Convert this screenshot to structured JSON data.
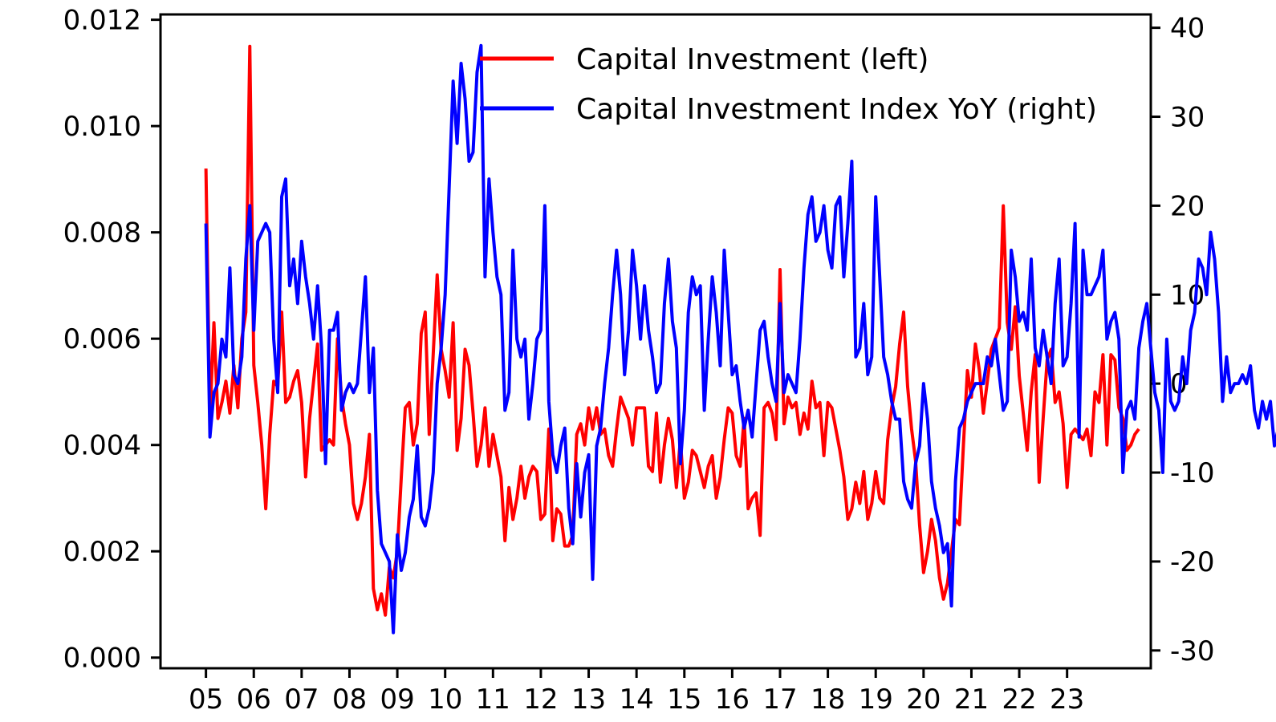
{
  "chart_data": {
    "type": "line",
    "legend_position": "top-center",
    "grid": false,
    "x_tick_labels": [
      "05",
      "06",
      "07",
      "08",
      "09",
      "10",
      "11",
      "12",
      "13",
      "14",
      "15",
      "16",
      "17",
      "18",
      "19",
      "20",
      "21",
      "22",
      "23"
    ],
    "x_tick_years": [
      2005,
      2006,
      2007,
      2008,
      2009,
      2010,
      2011,
      2012,
      2013,
      2014,
      2015,
      2016,
      2017,
      2018,
      2019,
      2020,
      2021,
      2022,
      2023
    ],
    "xlim": [
      2004.05,
      2024.75
    ],
    "left_axis": {
      "ylim": [
        -0.0002,
        0.0121
      ],
      "ticks": [
        0.0,
        0.002,
        0.004,
        0.006,
        0.008,
        0.01,
        0.012
      ],
      "tick_labels": [
        "0.000",
        "0.002",
        "0.004",
        "0.006",
        "0.008",
        "0.010",
        "0.012"
      ]
    },
    "right_axis": {
      "ylim": [
        -32,
        41.5
      ],
      "ticks": [
        -30,
        -20,
        -10,
        0,
        10,
        20,
        30,
        40
      ],
      "tick_labels": [
        "-30",
        "-20",
        "-10",
        "0",
        "10",
        "20",
        "30",
        "40"
      ]
    },
    "series": [
      {
        "name": "Capital Investment (left)",
        "axis": "left",
        "color": "#ff0000",
        "start": 2005.0,
        "step": 0.0833333,
        "values": [
          0.0092,
          0.0045,
          0.0063,
          0.0045,
          0.0048,
          0.0052,
          0.0046,
          0.0055,
          0.0047,
          0.006,
          0.0065,
          0.0115,
          0.0055,
          0.0048,
          0.004,
          0.0028,
          0.0042,
          0.0052,
          0.0051,
          0.0065,
          0.0048,
          0.0049,
          0.0052,
          0.0054,
          0.0048,
          0.0034,
          0.0045,
          0.0052,
          0.0059,
          0.0039,
          0.004,
          0.0041,
          0.004,
          0.006,
          0.0049,
          0.0044,
          0.004,
          0.0029,
          0.0026,
          0.0029,
          0.0034,
          0.0042,
          0.0013,
          0.0009,
          0.0012,
          0.0008,
          0.0017,
          0.0015,
          0.002,
          0.0034,
          0.0047,
          0.0048,
          0.004,
          0.0044,
          0.0061,
          0.0065,
          0.0042,
          0.0057,
          0.0072,
          0.0058,
          0.0054,
          0.0049,
          0.0063,
          0.0039,
          0.0045,
          0.0058,
          0.0055,
          0.0046,
          0.0036,
          0.004,
          0.0047,
          0.0036,
          0.0042,
          0.0038,
          0.0034,
          0.0022,
          0.0032,
          0.0026,
          0.003,
          0.0036,
          0.003,
          0.0034,
          0.0036,
          0.0035,
          0.0026,
          0.0027,
          0.0043,
          0.0022,
          0.0028,
          0.0027,
          0.0021,
          0.0021,
          0.0023,
          0.0042,
          0.0044,
          0.004,
          0.0047,
          0.0043,
          0.0047,
          0.0042,
          0.0043,
          0.0038,
          0.0036,
          0.0043,
          0.0049,
          0.0047,
          0.0045,
          0.004,
          0.0047,
          0.0047,
          0.0047,
          0.0036,
          0.0035,
          0.0046,
          0.0033,
          0.004,
          0.0045,
          0.0041,
          0.0032,
          0.0041,
          0.003,
          0.0033,
          0.0039,
          0.0038,
          0.0035,
          0.0032,
          0.0036,
          0.0038,
          0.003,
          0.0034,
          0.0041,
          0.0047,
          0.0046,
          0.0038,
          0.0036,
          0.0045,
          0.0028,
          0.003,
          0.0031,
          0.0023,
          0.0047,
          0.0048,
          0.0046,
          0.0041,
          0.0073,
          0.0044,
          0.0049,
          0.0047,
          0.0048,
          0.0042,
          0.0046,
          0.0043,
          0.0052,
          0.0047,
          0.0048,
          0.0038,
          0.0048,
          0.0047,
          0.0043,
          0.0039,
          0.0034,
          0.0026,
          0.0028,
          0.0033,
          0.0029,
          0.0035,
          0.0026,
          0.0029,
          0.0035,
          0.003,
          0.0029,
          0.0041,
          0.0047,
          0.0051,
          0.0059,
          0.0065,
          0.0051,
          0.0043,
          0.0037,
          0.0025,
          0.0016,
          0.002,
          0.0026,
          0.0022,
          0.0015,
          0.0011,
          0.0014,
          0.002,
          0.0026,
          0.0025,
          0.004,
          0.0054,
          0.0049,
          0.0059,
          0.0054,
          0.0046,
          0.0052,
          0.0058,
          0.006,
          0.0062,
          0.0085,
          0.0063,
          0.0058,
          0.0066,
          0.0053,
          0.0046,
          0.0039,
          0.005,
          0.0057,
          0.0033,
          0.0045,
          0.0056,
          0.0058,
          0.0048,
          0.005,
          0.0044,
          0.0032,
          0.0042,
          0.0043,
          0.0042,
          0.0041,
          0.0043,
          0.0038,
          0.005,
          0.0048,
          0.0057,
          0.004,
          0.0057,
          0.0056,
          0.0047,
          0.0045,
          0.0039,
          0.004,
          0.0042,
          0.0043
        ]
      },
      {
        "name": "Capital Investment Index YoY (right)",
        "axis": "right",
        "color": "#0000ff",
        "start": 2005.0,
        "step": 0.0833333,
        "values": [
          18,
          -6,
          -1,
          0,
          5,
          3,
          13,
          1,
          0,
          3,
          14,
          20,
          6,
          16,
          17,
          18,
          17,
          5,
          -1,
          21,
          23,
          11,
          14,
          9,
          16,
          12,
          9,
          5,
          11,
          4,
          -9,
          6,
          6,
          8,
          -3,
          -1,
          0,
          -1,
          0,
          6,
          12,
          -1,
          4,
          -12,
          -18,
          -19,
          -20,
          -28,
          -17,
          -21,
          -19,
          -15,
          -13,
          -7,
          -15,
          -16,
          -14,
          -10,
          0,
          4,
          10,
          22,
          34,
          27,
          36,
          32,
          25,
          26,
          35,
          38,
          12,
          23,
          17,
          12,
          10,
          -3,
          -1,
          15,
          5,
          3,
          5,
          -4,
          0,
          5,
          6,
          20,
          -2,
          -8,
          -10,
          -7,
          -5,
          -14,
          -18,
          -9,
          -15,
          -10,
          -8,
          -22,
          -7,
          -5,
          0,
          4,
          10,
          15,
          10,
          1,
          6,
          15,
          11,
          5,
          11,
          6,
          3,
          -1,
          0,
          9,
          14,
          7,
          4,
          -9,
          -3,
          8,
          12,
          10,
          11,
          -3,
          5,
          12,
          8,
          2,
          15,
          8,
          1,
          2,
          -2,
          -5,
          -3,
          -6,
          0,
          6,
          7,
          3,
          0,
          -2,
          9,
          -1,
          1,
          0,
          -1,
          5,
          13,
          19,
          21,
          16,
          17,
          20,
          15,
          13,
          20,
          21,
          12,
          18,
          25,
          3,
          4,
          9,
          1,
          3,
          21,
          12,
          3,
          1,
          -2,
          -4,
          -4,
          -11,
          -13,
          -14,
          -9,
          -7,
          0,
          -4,
          -11,
          -14,
          -16,
          -19,
          -18,
          -25,
          -11,
          -5,
          -4,
          -2,
          -1,
          0,
          0,
          0,
          3,
          2,
          5,
          1,
          -3,
          -2,
          15,
          12,
          7,
          8,
          6,
          14,
          4,
          2,
          6,
          3,
          0,
          9,
          14,
          2,
          3,
          9,
          18,
          -6,
          15,
          10,
          10,
          11,
          12,
          15,
          5,
          7,
          8,
          5,
          -10,
          -3,
          -2,
          -4,
          4,
          7,
          9,
          4,
          -1,
          -3,
          -10,
          5,
          -2,
          -3,
          -2,
          3,
          0,
          6,
          8,
          14,
          13,
          10,
          17,
          14,
          8,
          -2,
          3,
          -1,
          0,
          0,
          1,
          0,
          2,
          -3,
          -5,
          -2,
          -4,
          -2,
          -7,
          -5,
          -10,
          -13,
          -15,
          -10,
          -3,
          -1,
          -10,
          -11,
          -8,
          -9,
          -7,
          -6
        ]
      }
    ]
  }
}
